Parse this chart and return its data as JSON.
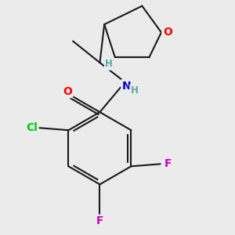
{
  "bg_color": "#ebebeb",
  "bond_color": "#1a1a1a",
  "bond_width": 1.5,
  "atom_colors": {
    "O": "#ff0000",
    "N": "#0000cc",
    "Cl": "#00cc00",
    "F": "#cc00cc",
    "H_gray": "#55aaaa",
    "C": "#1a1a1a"
  },
  "font_size_atom": 10,
  "font_size_small": 8.5
}
